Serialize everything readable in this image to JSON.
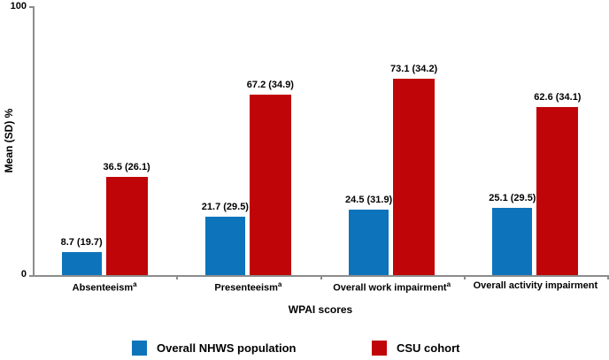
{
  "figure": {
    "y_axis_title": "Mean (SD) %",
    "x_axis_title": "WPAI scores",
    "y_tick_top": "100",
    "y_tick_bottom": "0"
  },
  "legend": {
    "items": [
      {
        "label": "Overall NHWS population",
        "color": "#0d74bc"
      },
      {
        "label": "CSU cohort",
        "color": "#c00508"
      }
    ]
  },
  "chart_data": {
    "type": "bar",
    "title": "",
    "xlabel": "WPAI scores",
    "ylabel": "Mean (SD) %",
    "ylim": [
      0,
      100
    ],
    "yticks": [
      0,
      100
    ],
    "grid": false,
    "legend_position": "bottom",
    "categories": [
      "Absenteeism",
      "Presenteeism",
      "Overall work impairment",
      "Overall activity impairment"
    ],
    "category_superscripts": [
      "a",
      "a",
      "a",
      ""
    ],
    "series": [
      {
        "name": "Overall NHWS population",
        "color": "#0d74bc",
        "values": [
          8.7,
          21.7,
          24.5,
          25.1
        ],
        "sd": [
          19.7,
          29.5,
          31.9,
          29.5
        ],
        "data_labels": [
          "8.7 (19.7)",
          "21.7 (29.5)",
          "24.5 (31.9)",
          "25.1 (29.5)"
        ]
      },
      {
        "name": "CSU cohort",
        "color": "#c00508",
        "values": [
          36.5,
          67.2,
          73.1,
          62.6
        ],
        "sd": [
          26.1,
          34.9,
          34.2,
          34.1
        ],
        "data_labels": [
          "36.5 (26.1)",
          "67.2 (34.9)",
          "73.1 (34.2)",
          "62.6 (34.1)"
        ]
      }
    ]
  }
}
